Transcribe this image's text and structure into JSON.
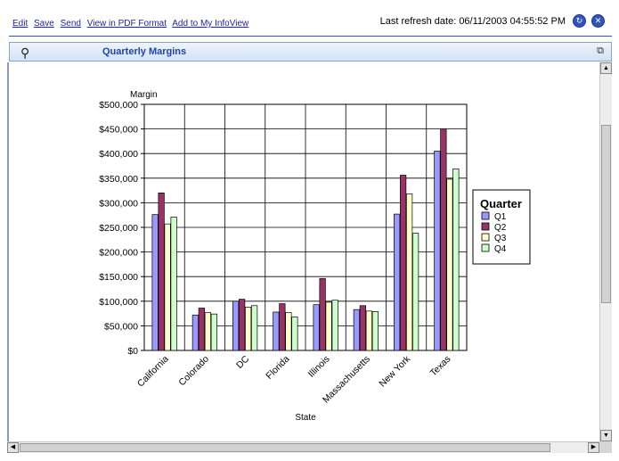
{
  "toolbar": {
    "links": [
      "Edit",
      "Save",
      "Send",
      "View in PDF Format",
      "Add to My InfoView"
    ],
    "refresh_text": "Last refresh date: 06/11/2003 04:55:52 PM"
  },
  "report": {
    "title": "Quarterly Margins"
  },
  "chart_data": {
    "type": "bar",
    "title": "",
    "xlabel": "State",
    "ylabel": "Margin",
    "categories": [
      "California",
      "Colorado",
      "DC",
      "Florida",
      "Illinois",
      "Massachusetts",
      "New York",
      "Texas"
    ],
    "series": [
      {
        "name": "Q1",
        "color": "#9999ff",
        "values": [
          276000,
          72000,
          100000,
          78000,
          93000,
          83000,
          277000,
          405000
        ]
      },
      {
        "name": "Q2",
        "color": "#993366",
        "values": [
          320000,
          86000,
          104000,
          95000,
          146000,
          91000,
          356000,
          450000
        ]
      },
      {
        "name": "Q3",
        "color": "#ffffcc",
        "values": [
          257000,
          77000,
          88000,
          77000,
          98000,
          80000,
          318000,
          348000
        ]
      },
      {
        "name": "Q4",
        "color": "#ccffcc",
        "values": [
          271000,
          74000,
          91000,
          68000,
          102000,
          79000,
          238000,
          369000
        ]
      }
    ],
    "ylim": [
      0,
      500000
    ],
    "yticks": [
      0,
      50000,
      100000,
      150000,
      200000,
      250000,
      300000,
      350000,
      400000,
      450000,
      500000
    ],
    "ytick_labels": [
      "$0",
      "$50,000",
      "$100,000",
      "$150,000",
      "$200,000",
      "$250,000",
      "$300,000",
      "$350,000",
      "$400,000",
      "$450,000",
      "$500,000"
    ],
    "legend": {
      "title": "Quarter",
      "placement": "right"
    },
    "grid": true
  }
}
